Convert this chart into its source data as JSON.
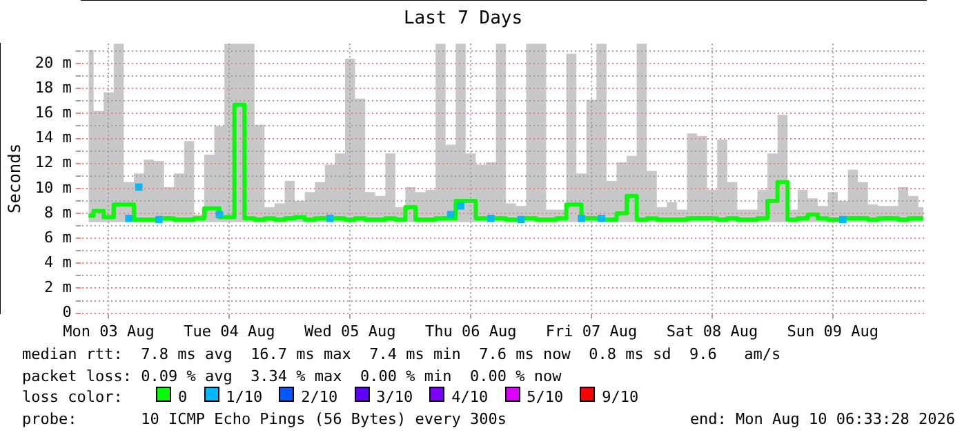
{
  "chart_data": {
    "type": "step",
    "title": "Last 7 Days",
    "ylabel": "Seconds",
    "legend_title": "loss color:",
    "legend": "bottom",
    "grid": true,
    "annotations": [
      "median rtt:  7.8 ms avg  16.7 ms max  7.4 ms min  7.6 ms now  0.8 ms sd  9.6   am/s",
      "packet loss: 0.09 % avg  3.34 % max  0.00 % min  0.00 % now",
      "probe:       10 ICMP Echo Pings (56 Bytes) every 300s",
      "end: Mon Aug 10 06:33:28 2026"
    ],
    "xlim": [
      "2026-08-03T06:33",
      "2026-08-10T06:33"
    ],
    "xticks": [
      {
        "value": "2026-08-03T12:00",
        "label": "Mon 03 Aug"
      },
      {
        "value": "2026-08-04T12:00",
        "label": "Tue 04 Aug"
      },
      {
        "value": "2026-08-05T12:00",
        "label": "Wed 05 Aug"
      },
      {
        "value": "2026-08-06T12:00",
        "label": "Thu 06 Aug"
      },
      {
        "value": "2026-08-07T12:00",
        "label": "Fri 07 Aug"
      },
      {
        "value": "2026-08-08T12:00",
        "label": "Sat 08 Aug"
      },
      {
        "value": "2026-08-09T12:00",
        "label": "Sun 09 Aug"
      }
    ],
    "ylim": [
      0,
      21.6
    ],
    "yticks": [
      0,
      {
        "value": 1,
        "label": null
      },
      {
        "value": 2,
        "label": "2 m"
      },
      {
        "value": 3,
        "label": null
      },
      {
        "value": 4,
        "label": "4 m"
      },
      {
        "value": 5,
        "label": null
      },
      {
        "value": 6,
        "label": "6 m"
      },
      {
        "value": 7,
        "label": null
      },
      {
        "value": 8,
        "label": "8 m"
      },
      {
        "value": 9,
        "label": null
      },
      {
        "value": 10,
        "label": "10 m"
      },
      {
        "value": 11,
        "label": null
      },
      {
        "value": 12,
        "label": "12 m"
      },
      {
        "value": 13,
        "label": null
      },
      {
        "value": 14,
        "label": "14 m"
      },
      {
        "value": 15,
        "label": null
      },
      {
        "value": 16,
        "label": "16 m"
      },
      {
        "value": 17,
        "label": null
      },
      {
        "value": 18,
        "label": "18 m"
      },
      {
        "value": 19,
        "label": null
      },
      {
        "value": 20,
        "label": "20 m"
      },
      {
        "value": 21,
        "label": null
      }
    ],
    "x": [
      "2026-08-03T08:00",
      "2026-08-03T10:00",
      "2026-08-03T12:00",
      "2026-08-03T14:00",
      "2026-08-03T16:00",
      "2026-08-03T18:00",
      "2026-08-03T20:00",
      "2026-08-03T22:00",
      "2026-08-04T00:00",
      "2026-08-04T02:00",
      "2026-08-04T04:00",
      "2026-08-04T06:00",
      "2026-08-04T08:00",
      "2026-08-04T10:00",
      "2026-08-04T12:00",
      "2026-08-04T14:00",
      "2026-08-04T16:00",
      "2026-08-04T18:00",
      "2026-08-04T20:00",
      "2026-08-04T22:00",
      "2026-08-05T00:00",
      "2026-08-05T02:00",
      "2026-08-05T04:00",
      "2026-08-05T06:00",
      "2026-08-05T08:00",
      "2026-08-05T10:00",
      "2026-08-05T12:00",
      "2026-08-05T14:00",
      "2026-08-05T16:00",
      "2026-08-05T18:00",
      "2026-08-05T20:00",
      "2026-08-05T22:00",
      "2026-08-06T00:00",
      "2026-08-06T02:00",
      "2026-08-06T04:00",
      "2026-08-06T06:00",
      "2026-08-06T08:00",
      "2026-08-06T10:00",
      "2026-08-06T12:00",
      "2026-08-06T14:00",
      "2026-08-06T16:00",
      "2026-08-06T18:00",
      "2026-08-06T20:00",
      "2026-08-06T22:00",
      "2026-08-07T00:00",
      "2026-08-07T02:00",
      "2026-08-07T04:00",
      "2026-08-07T06:00",
      "2026-08-07T08:00",
      "2026-08-07T10:00",
      "2026-08-07T12:00",
      "2026-08-07T14:00",
      "2026-08-07T16:00",
      "2026-08-07T18:00",
      "2026-08-07T20:00",
      "2026-08-07T22:00",
      "2026-08-08T00:00",
      "2026-08-08T02:00",
      "2026-08-08T04:00",
      "2026-08-08T06:00",
      "2026-08-08T08:00",
      "2026-08-08T10:00",
      "2026-08-08T12:00",
      "2026-08-08T14:00",
      "2026-08-08T16:00",
      "2026-08-08T18:00",
      "2026-08-08T20:00",
      "2026-08-08T22:00",
      "2026-08-09T00:00",
      "2026-08-09T02:00",
      "2026-08-09T04:00",
      "2026-08-09T06:00",
      "2026-08-09T08:00",
      "2026-08-09T10:00",
      "2026-08-09T12:00",
      "2026-08-09T14:00",
      "2026-08-09T16:00",
      "2026-08-09T18:00",
      "2026-08-09T20:00",
      "2026-08-09T22:00",
      "2026-08-10T00:00",
      "2026-08-10T02:00",
      "2026-08-10T04:00",
      "2026-08-10T06:00"
    ],
    "series": [
      {
        "name": "0",
        "color": "#00ff00",
        "values": [
          7.8,
          8.2,
          7.7,
          8.7,
          null,
          null,
          7.5,
          null,
          7.6,
          7.5,
          7.5,
          7.6,
          8.4,
          null,
          7.7,
          16.7,
          7.6,
          7.5,
          7.6,
          7.5,
          7.6,
          7.7,
          7.5,
          7.6,
          null,
          7.6,
          7.5,
          7.6,
          7.5,
          7.5,
          7.6,
          7.5,
          8.5,
          7.5,
          7.5,
          7.6,
          null,
          null,
          9.0,
          7.6,
          null,
          7.6,
          7.5,
          null,
          7.6,
          7.5,
          7.5,
          7.6,
          8.7,
          null,
          7.6,
          null,
          7.5,
          8.0,
          9.4,
          7.5,
          7.6,
          7.5,
          7.5,
          7.5,
          7.6,
          7.6,
          7.6,
          7.5,
          7.6,
          7.5,
          7.5,
          7.6,
          9.0,
          10.5,
          7.5,
          7.6,
          7.9,
          7.6,
          7.5,
          null,
          7.6,
          7.6,
          7.5,
          7.6,
          7.6,
          7.5,
          7.6,
          7.6
        ],
        "lower": [
          7.3,
          7.3,
          7.3,
          7.3,
          7.3,
          7.3,
          7.3,
          7.3,
          7.3,
          7.3,
          7.3,
          7.3,
          7.3,
          7.3,
          7.3,
          7.3,
          7.3,
          7.3,
          7.3,
          7.3,
          7.3,
          7.3,
          7.3,
          7.3,
          7.3,
          7.3,
          7.3,
          7.3,
          7.3,
          7.3,
          7.3,
          7.3,
          7.3,
          7.3,
          7.3,
          7.3,
          7.3,
          7.3,
          7.3,
          7.3,
          7.3,
          7.3,
          7.3,
          7.3,
          7.3,
          7.3,
          7.3,
          7.3,
          7.3,
          7.3,
          7.3,
          7.3,
          7.3,
          7.3,
          7.3,
          7.3,
          7.3,
          7.3,
          7.3,
          7.3,
          7.3,
          7.3,
          7.3,
          7.3,
          7.3,
          7.3,
          7.3,
          7.3,
          7.3,
          7.3,
          7.3,
          7.3,
          7.3,
          7.3,
          7.3,
          7.3,
          7.3,
          7.3,
          7.3,
          7.3,
          7.3,
          7.3,
          7.3,
          7.3
        ],
        "upper": [
          21.1,
          16.2,
          17.7,
          21.6,
          10.5,
          11.2,
          12.3,
          12.2,
          10.1,
          11.2,
          13.8,
          7.9,
          12.7,
          15,
          21.6,
          21.6,
          21.6,
          15.1,
          8.5,
          8.8,
          10.6,
          9,
          9.7,
          10.5,
          11.9,
          12.8,
          20.4,
          17.2,
          9.7,
          9.4,
          12.8,
          8.5,
          10.1,
          9.7,
          9.9,
          21.6,
          13.5,
          21.6,
          12.8,
          11.9,
          12.1,
          21.6,
          8.8,
          8.6,
          21.6,
          21.6,
          8.3,
          8.3,
          20.8,
          11.2,
          17.1,
          21.6,
          10.6,
          12.1,
          12.6,
          21.6,
          11.4,
          8.5,
          8.9,
          8.3,
          14.4,
          14.2,
          9.9,
          13.9,
          10.5,
          8.3,
          8.3,
          9.9,
          12.8,
          15.9,
          8.3,
          9.9,
          9.2,
          8.6,
          9.7,
          9,
          11.5,
          10.5,
          8.7,
          8.6,
          8.6,
          10.1,
          9.4,
          8.5
        ]
      },
      {
        "type": "scatter",
        "name": "1/10",
        "color": "#00b8ff",
        "marker": "square",
        "x": [
          "2026-08-03T16:00",
          "2026-08-03T18:00",
          "2026-08-03T22:00",
          "2026-08-04T10:00",
          "2026-08-05T08:00",
          "2026-08-06T08:00",
          "2026-08-06T10:00",
          "2026-08-06T16:00",
          "2026-08-06T22:00",
          "2026-08-07T10:00",
          "2026-08-07T14:00",
          "2026-08-09T14:00"
        ],
        "values": [
          7.6,
          10.1,
          7.5,
          7.9,
          7.6,
          7.9,
          8.6,
          7.6,
          7.5,
          7.6,
          7.6,
          7.5
        ]
      },
      {
        "type": "scatter",
        "name": "2/10",
        "color": "#0059ff",
        "marker": "square",
        "values": [
          null,
          null,
          null,
          null,
          null,
          null,
          null,
          null,
          null,
          null,
          null,
          null,
          null,
          null,
          null,
          null,
          null,
          null,
          null,
          null,
          null,
          null,
          null,
          null,
          null,
          null,
          null,
          null,
          null,
          null,
          null,
          null,
          null,
          null,
          null,
          null,
          null,
          null,
          null,
          null,
          null,
          null,
          null,
          null,
          null,
          null,
          null,
          null,
          null,
          null,
          null,
          null,
          null,
          null,
          null,
          null,
          null,
          null,
          null,
          null,
          null,
          null,
          null,
          null,
          null,
          null,
          null,
          null,
          null,
          null,
          null,
          null,
          null,
          null,
          null,
          null,
          null,
          null,
          null,
          null,
          null,
          null,
          null,
          null
        ]
      },
      {
        "type": "scatter",
        "name": "3/10",
        "color": "#5e00ff",
        "marker": "square",
        "values": [
          null,
          null,
          null,
          null,
          null,
          null,
          null,
          null,
          null,
          null,
          null,
          null,
          null,
          null,
          null,
          null,
          null,
          null,
          null,
          null,
          null,
          null,
          null,
          null,
          null,
          null,
          null,
          null,
          null,
          null,
          null,
          null,
          null,
          null,
          null,
          null,
          null,
          null,
          null,
          null,
          null,
          null,
          null,
          null,
          null,
          null,
          null,
          null,
          null,
          null,
          null,
          null,
          null,
          null,
          null,
          null,
          null,
          null,
          null,
          null,
          null,
          null,
          null,
          null,
          null,
          null,
          null,
          null,
          null,
          null,
          null,
          null,
          null,
          null,
          null,
          null,
          null,
          null,
          null,
          null,
          null,
          null,
          null,
          null
        ]
      },
      {
        "type": "scatter",
        "name": "4/10",
        "color": "#7e00ff",
        "marker": "square",
        "values": [
          null,
          null,
          null,
          null,
          null,
          null,
          null,
          null,
          null,
          null,
          null,
          null,
          null,
          null,
          null,
          null,
          null,
          null,
          null,
          null,
          null,
          null,
          null,
          null,
          null,
          null,
          null,
          null,
          null,
          null,
          null,
          null,
          null,
          null,
          null,
          null,
          null,
          null,
          null,
          null,
          null,
          null,
          null,
          null,
          null,
          null,
          null,
          null,
          null,
          null,
          null,
          null,
          null,
          null,
          null,
          null,
          null,
          null,
          null,
          null,
          null,
          null,
          null,
          null,
          null,
          null,
          null,
          null,
          null,
          null,
          null,
          null,
          null,
          null,
          null,
          null,
          null,
          null,
          null,
          null,
          null,
          null,
          null,
          null
        ]
      },
      {
        "type": "scatter",
        "name": "5/10",
        "color": "#dd00ff",
        "marker": "square",
        "values": [
          null,
          null,
          null,
          null,
          null,
          null,
          null,
          null,
          null,
          null,
          null,
          null,
          null,
          null,
          null,
          null,
          null,
          null,
          null,
          null,
          null,
          null,
          null,
          null,
          null,
          null,
          null,
          null,
          null,
          null,
          null,
          null,
          null,
          null,
          null,
          null,
          null,
          null,
          null,
          null,
          null,
          null,
          null,
          null,
          null,
          null,
          null,
          null,
          null,
          null,
          null,
          null,
          null,
          null,
          null,
          null,
          null,
          null,
          null,
          null,
          null,
          null,
          null,
          null,
          null,
          null,
          null,
          null,
          null,
          null,
          null,
          null,
          null,
          null,
          null,
          null,
          null,
          null,
          null,
          null,
          null,
          null,
          null,
          null
        ]
      },
      {
        "type": "scatter",
        "name": "9/10",
        "color": "#ff0000",
        "marker": "square",
        "values": [
          null,
          null,
          null,
          null,
          null,
          null,
          null,
          null,
          null,
          null,
          null,
          null,
          null,
          null,
          null,
          null,
          null,
          null,
          null,
          null,
          null,
          null,
          null,
          null,
          null,
          null,
          null,
          null,
          null,
          null,
          null,
          null,
          null,
          null,
          null,
          null,
          null,
          null,
          null,
          null,
          null,
          null,
          null,
          null,
          null,
          null,
          null,
          null,
          null,
          null,
          null,
          null,
          null,
          null,
          null,
          null,
          null,
          null,
          null,
          null,
          null,
          null,
          null,
          null,
          null,
          null,
          null,
          null,
          null,
          null,
          null,
          null,
          null,
          null,
          null,
          null,
          null,
          null,
          null,
          null,
          null,
          null,
          null,
          null
        ]
      }
    ]
  }
}
